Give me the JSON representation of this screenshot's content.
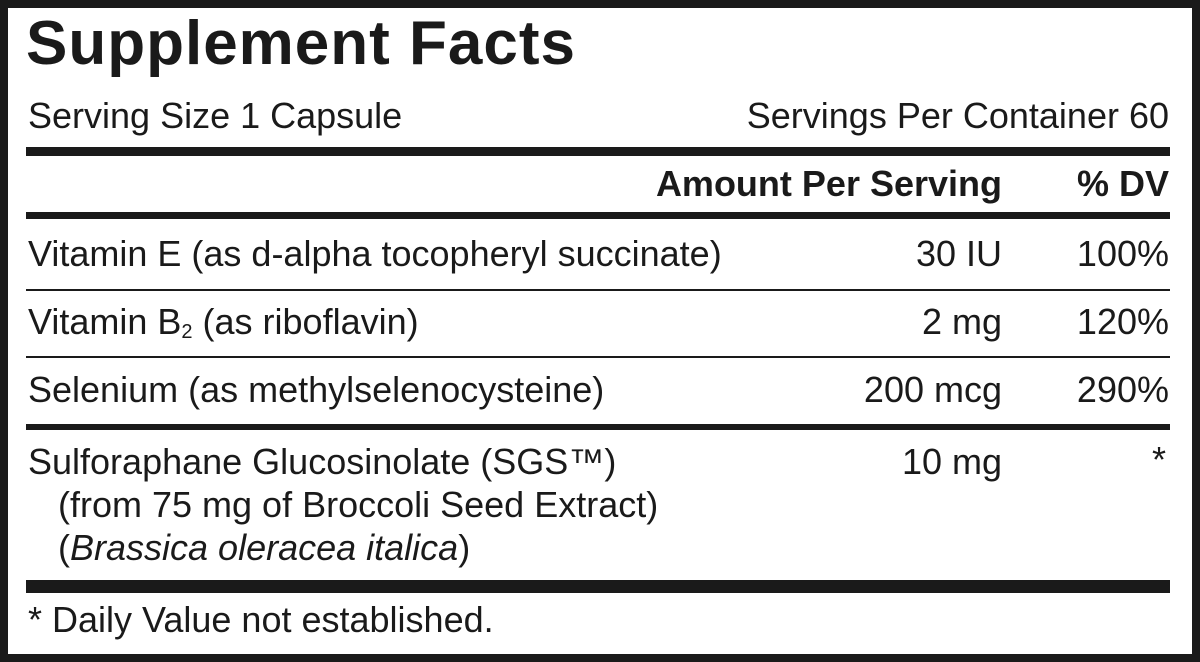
{
  "title": "Supplement Facts",
  "serving_size": "Serving Size 1 Capsule",
  "servings_per_container": "Servings Per Container 60",
  "header": {
    "amount": "Amount Per Serving",
    "dv": "% DV"
  },
  "rows": [
    {
      "name": "Vitamin E (as d-alpha tocopheryl succinate)",
      "amount": "30 IU",
      "dv": "100%"
    },
    {
      "name_pre": "Vitamin B",
      "name_sub": "2",
      "name_post": " (as riboflavin)",
      "amount": "2 mg",
      "dv": "120%"
    },
    {
      "name": "Selenium (as methylselenocysteine)",
      "amount": "200 mcg",
      "dv": "290%"
    },
    {
      "name": "Sulforaphane Glucosinolate (SGS™)",
      "line2": "(from 75 mg of Broccoli Seed Extract)",
      "line3_open": "(",
      "line3_italic": "Brassica oleracea italica",
      "line3_close": ")",
      "amount": "10 mg",
      "dv": "*"
    }
  ],
  "footnote": "* Daily Value not established."
}
